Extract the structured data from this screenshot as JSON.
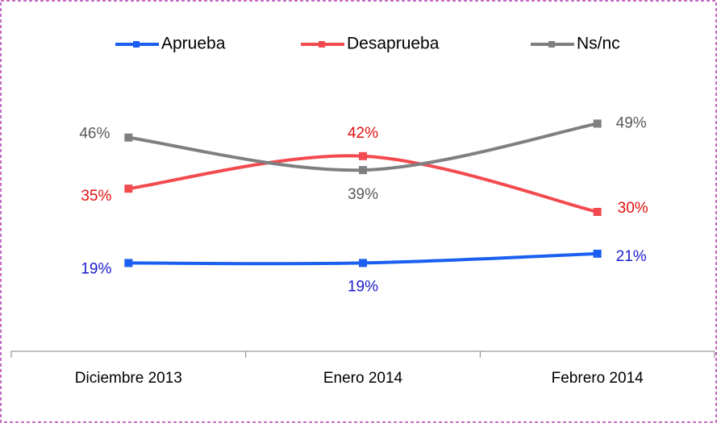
{
  "chart_data": {
    "type": "line",
    "categories": [
      "Diciembre 2013",
      "Enero 2014",
      "Febrero 2014"
    ],
    "ylim": [
      0,
      60
    ],
    "series": [
      {
        "name": "Aprueba",
        "color": "#1a5ff0",
        "values": [
          19,
          19,
          21
        ],
        "value_labels": [
          "19%",
          "19%",
          "21%"
        ],
        "label_color": "#1a1acc"
      },
      {
        "name": "Desaprueba",
        "color": "#f24a4f",
        "values": [
          35,
          42,
          30
        ],
        "value_labels": [
          "35%",
          "42%",
          "30%"
        ],
        "label_color": "#e01010"
      },
      {
        "name": "Ns/nc",
        "color": "#7f7f7f",
        "values": [
          46,
          39,
          49
        ],
        "value_labels": [
          "46%",
          "39%",
          "49%"
        ],
        "label_color": "#595959"
      }
    ],
    "legend": "top"
  }
}
